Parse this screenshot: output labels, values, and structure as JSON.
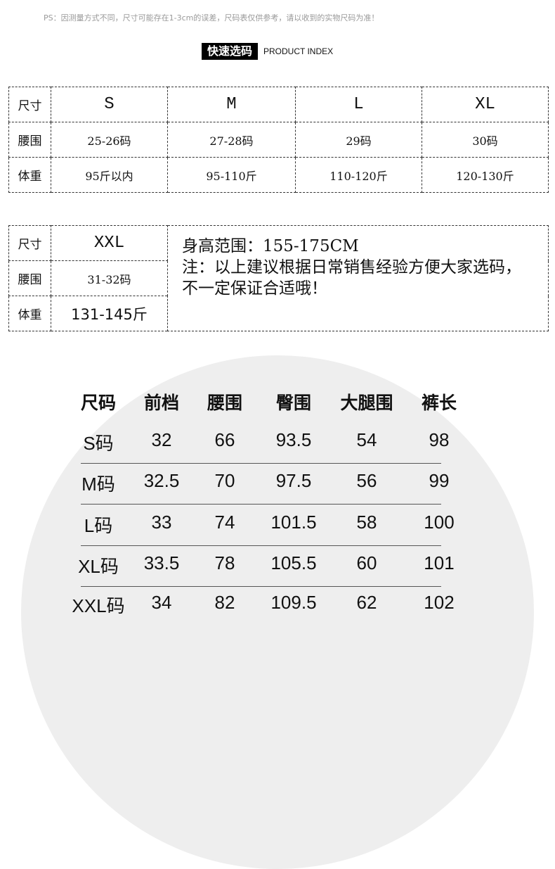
{
  "ps_note": "PS：因测量方式不同，尺寸可能存在1-3cm的误差，尺码表仅供参考，请以收到的实物尺码为准！",
  "index_title_cn": "快速选码",
  "index_title_en": "PRODUCT INDEX",
  "table1": {
    "row_labels": [
      "尺寸",
      "腰围",
      "体重"
    ],
    "sizes": [
      "S",
      "M",
      "L",
      "XL"
    ],
    "waist": [
      "25-26码",
      "27-28码",
      "29码",
      "30码"
    ],
    "weight": [
      "95斤以内",
      "95-110斤",
      "110-120斤",
      "120-130斤"
    ]
  },
  "table2": {
    "row_labels": [
      "尺寸",
      "腰围",
      "体重"
    ],
    "size": "XXL",
    "waist": "31-32码",
    "weight": "131-145斤",
    "height_range": "身高范围：155-175CM",
    "note": "注：以上建议根据日常销售经验方便大家选码，不一定保证合适哦！"
  },
  "measure_table": {
    "headers": [
      "尺码",
      "前档",
      "腰围",
      "臀围",
      "大腿围",
      "裤长"
    ],
    "rows": [
      [
        "S码",
        "32",
        "66",
        "93.5",
        "54",
        "98"
      ],
      [
        "M码",
        "32.5",
        "70",
        "97.5",
        "56",
        "99"
      ],
      [
        "L码",
        "33",
        "74",
        "101.5",
        "58",
        "100"
      ],
      [
        "XL码",
        "33.5",
        "78",
        "105.5",
        "60",
        "101"
      ],
      [
        "XXL码",
        "34",
        "82",
        "109.5",
        "62",
        "102"
      ]
    ]
  }
}
